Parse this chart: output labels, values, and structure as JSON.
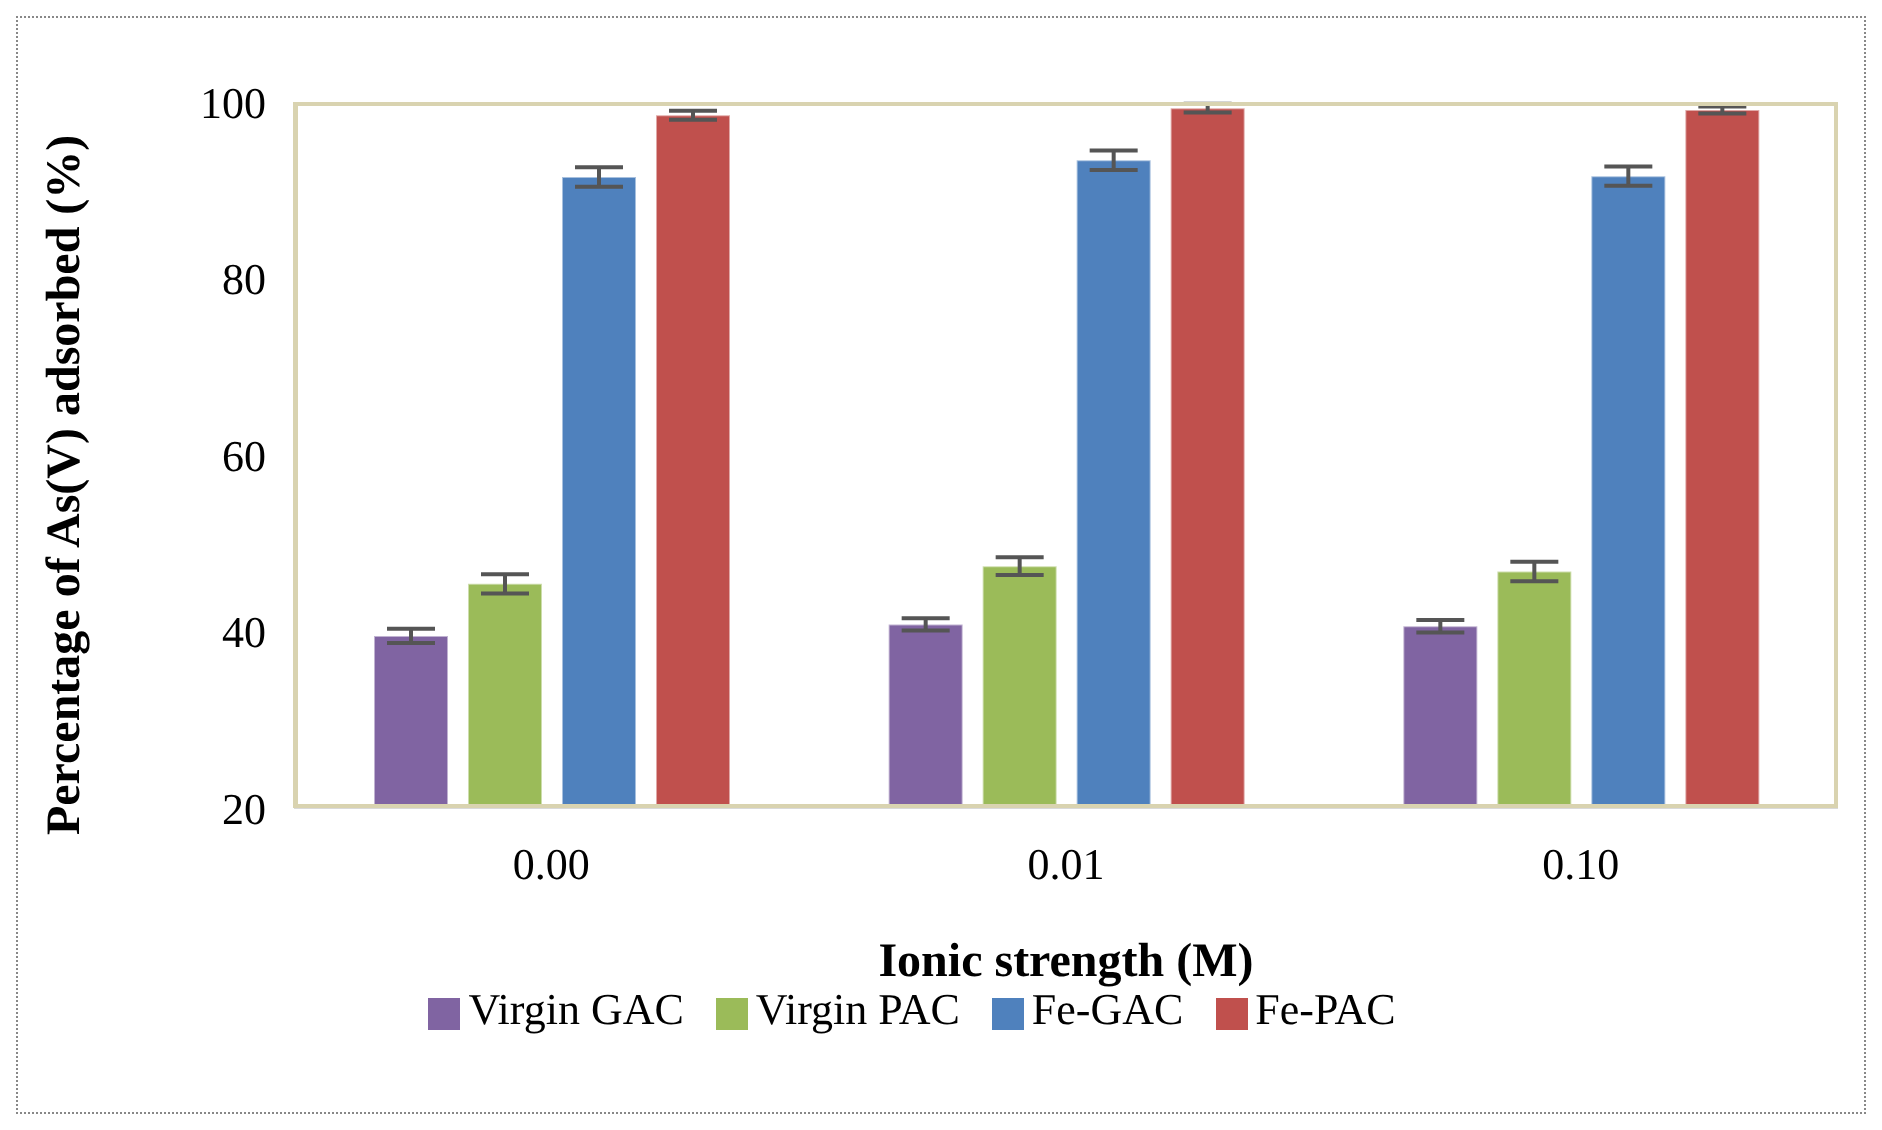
{
  "chart_data": {
    "type": "bar",
    "xlabel": "Ionic strength (M)",
    "ylabel": "Percentage of As(V) adsorbed (%)",
    "categories": [
      "0.00",
      "0.01",
      "0.10"
    ],
    "series": [
      {
        "name": "Virgin GAC",
        "color": "#8064a2",
        "values": [
          39.5,
          40.8,
          40.6
        ],
        "errors": [
          0.8,
          0.7,
          0.7
        ]
      },
      {
        "name": "Virgin PAC",
        "color": "#9bbb59",
        "values": [
          45.4,
          47.4,
          46.8
        ],
        "errors": [
          1.1,
          1.0,
          1.1
        ]
      },
      {
        "name": "Fe-GAC",
        "color": "#4f81bd",
        "values": [
          91.5,
          93.4,
          91.6
        ],
        "errors": [
          1.1,
          1.1,
          1.1
        ]
      },
      {
        "name": "Fe-PAC",
        "color": "#c0504d",
        "values": [
          98.5,
          99.3,
          99.1
        ],
        "errors": [
          0.5,
          0.5,
          0.4
        ]
      }
    ],
    "ylim": [
      20,
      100
    ],
    "yticks": [
      20,
      40,
      60,
      80,
      100
    ],
    "legend": "bottom"
  }
}
